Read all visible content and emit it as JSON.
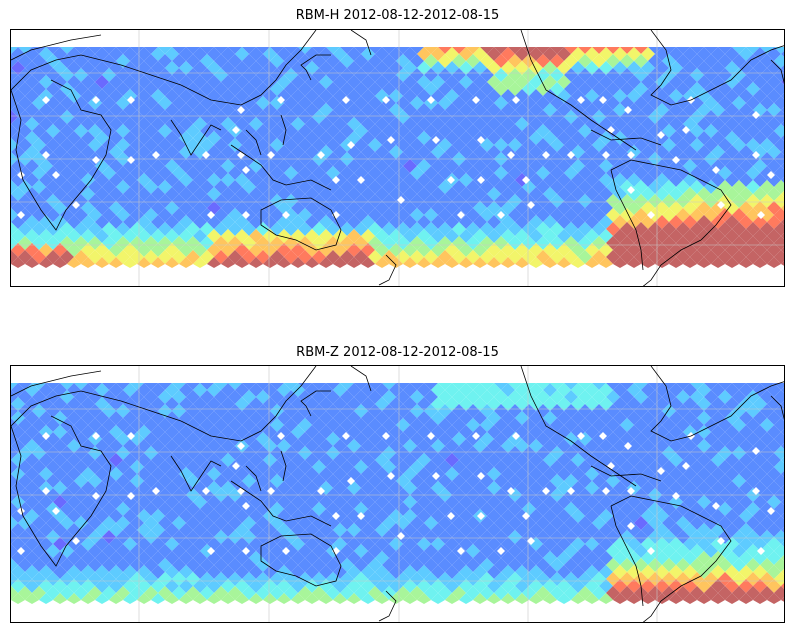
{
  "panels": [
    {
      "title": "RBM-H 2012-08-12-2012-08-15"
    },
    {
      "title": "RBM-Z 2012-08-12-2012-08-15"
    }
  ],
  "colors": {
    "frame": "#000000",
    "coast": "#000000",
    "grid": "#c8c8c8",
    "colormap": [
      "#6a6aff",
      "#5a8cff",
      "#5ecbff",
      "#6ff2f0",
      "#a8f59a",
      "#f2f56a",
      "#ffc55e",
      "#ff7a5e",
      "#c46464"
    ]
  }
}
